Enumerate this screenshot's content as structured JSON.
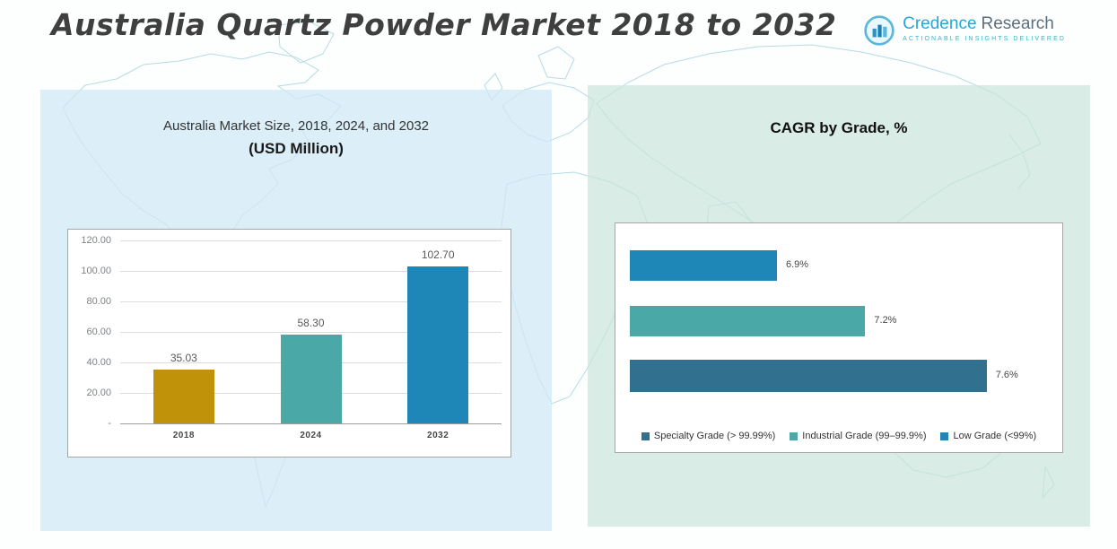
{
  "page": {
    "title": "Australia Quartz Powder Market 2018 to 2032"
  },
  "logo": {
    "brand_primary": "Credence",
    "brand_secondary": "Research",
    "tagline": "Actionable Insights Delivered"
  },
  "chart_data": [
    {
      "type": "bar",
      "orientation": "vertical",
      "title_line1": "Australia Market Size, 2018, 2024, and 2032",
      "title_line2": "(USD Million)",
      "categories": [
        "2018",
        "2024",
        "2032"
      ],
      "values": [
        35.03,
        58.3,
        102.7
      ],
      "data_labels": [
        "35.03",
        "58.30",
        "102.70"
      ],
      "bar_colors": [
        "#c09209",
        "#4aa8a6",
        "#1f86b8"
      ],
      "ylim": [
        0,
        120
      ],
      "yticks": [
        "120.00",
        "100.00",
        "80.00",
        "60.00",
        "40.00",
        "20.00",
        "-"
      ],
      "grid": true,
      "legend": "none"
    },
    {
      "type": "bar",
      "orientation": "horizontal",
      "title": "CAGR by Grade, %",
      "categories": [
        "Low Grade (<99%)",
        "Industrial Grade (99–99.9%)",
        "Specialty Grade (> 99.99%)"
      ],
      "values": [
        6.9,
        7.2,
        7.6
      ],
      "data_labels": [
        "6.9%",
        "7.2%",
        "7.6%"
      ],
      "bar_colors": [
        "#1f86b8",
        "#4aa8a6",
        "#31708f"
      ],
      "bar_width_pct": [
        40,
        64,
        97
      ],
      "grid": false,
      "legend_position": "bottom",
      "legend_items": [
        {
          "label": "Specialty Grade (> 99.99%)",
          "color": "#31708f"
        },
        {
          "label": "Industrial Grade (99–99.9%)",
          "color": "#4aa8a6"
        },
        {
          "label": "Low Grade (<99%)",
          "color": "#1f86b8"
        }
      ]
    }
  ]
}
